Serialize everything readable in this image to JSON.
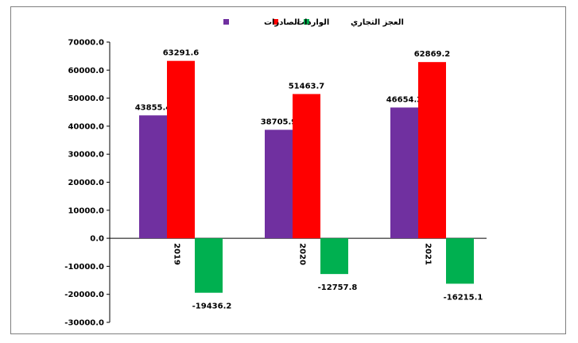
{
  "chart_data": {
    "type": "bar",
    "categories": [
      "2019",
      "2020",
      "2021"
    ],
    "series": [
      {
        "name": "الصادرات",
        "color": "#7030a0",
        "values": [
          43855.4,
          38705.9,
          46654.2
        ]
      },
      {
        "name": "الواردات",
        "color": "#ff0000",
        "values": [
          63291.6,
          51463.7,
          62869.2
        ]
      },
      {
        "name": "العجز التجاري",
        "color": "#00b050",
        "values": [
          -19436.2,
          -12757.8,
          -16215.1
        ]
      }
    ],
    "data_labels": [
      [
        "43855.4",
        "38705.9",
        "46654.2"
      ],
      [
        "63291.6",
        "51463.7",
        "62869.2"
      ],
      [
        "-19436.2",
        "-12757.8",
        "-16215.1"
      ]
    ],
    "ylim": [
      -30000,
      70000
    ],
    "ytick_step": 10000,
    "ytick_labels": [
      "70000.0",
      "60000.0",
      "50000.0",
      "40000.0",
      "30000.0",
      "20000.0",
      "10000.0",
      "0.0",
      "-10000.0",
      "-20000.0",
      "-30000.0"
    ],
    "title": "",
    "xlabel": "",
    "ylabel": "",
    "legend_position": "top-center",
    "grid": false
  }
}
